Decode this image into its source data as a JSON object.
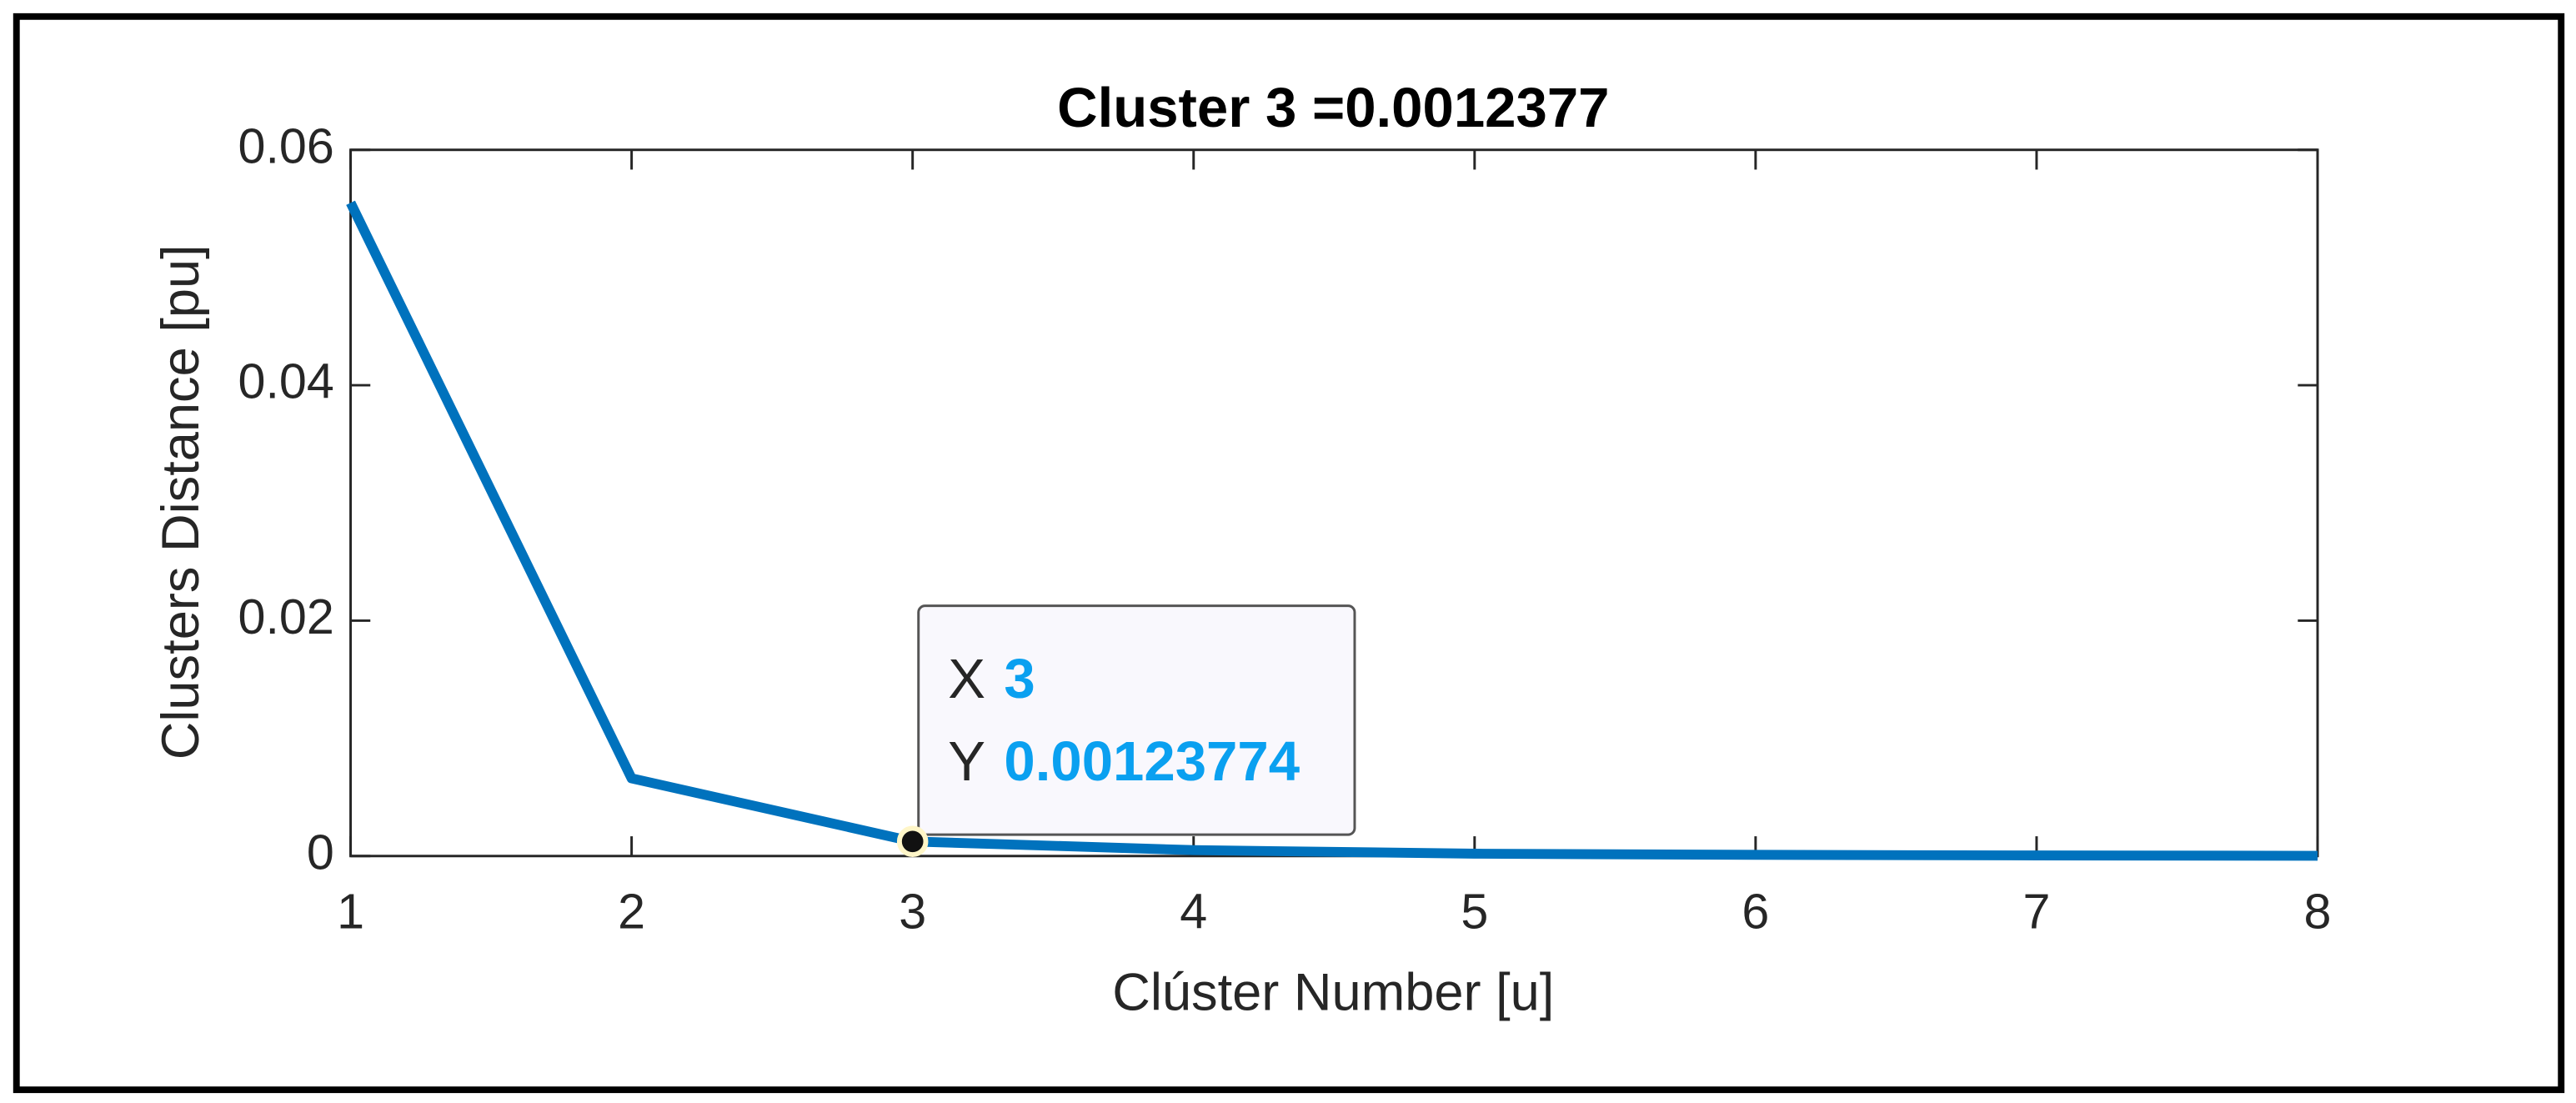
{
  "chart_data": {
    "type": "line",
    "title": "Cluster 3 =0.0012377",
    "x_label": "Clúster Number [u]",
    "y_label": "Clusters Distance [pu]",
    "x": [
      1,
      2,
      3,
      4,
      5,
      6,
      7,
      8
    ],
    "series": [
      {
        "color": "#0072bd",
        "values": [
          0.0555,
          0.0066,
          0.00123774,
          0.0005,
          0.0002,
          0.0001,
          5e-05,
          2e-05
        ]
      }
    ],
    "xlim": [
      1,
      8
    ],
    "xticks": [
      1,
      2,
      3,
      4,
      5,
      6,
      7,
      8
    ],
    "ylim": [
      0,
      0.06
    ],
    "yticks": [
      0,
      0.02,
      0.04,
      0.06
    ],
    "datatip": {
      "x_name": "X",
      "x_value": 3,
      "y_name": "Y",
      "y_value": 0.00123774
    }
  }
}
